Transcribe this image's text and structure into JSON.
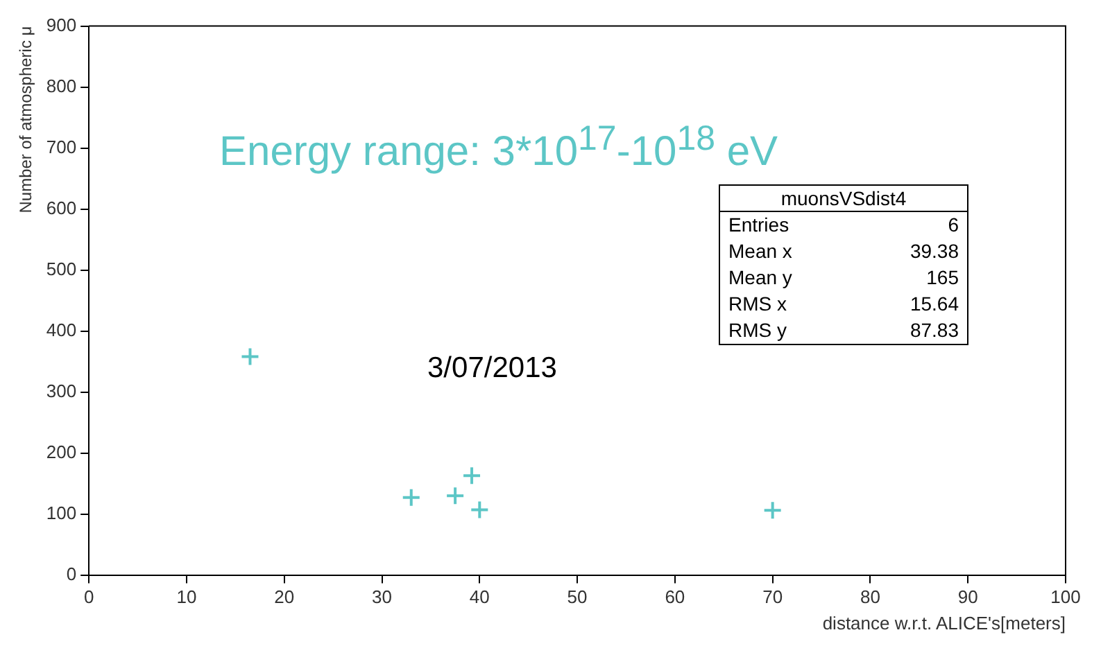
{
  "chart_data": {
    "type": "scatter",
    "xlabel": "distance w.r.t. ALICE's[meters]",
    "ylabel": "Number of atmospheric μ",
    "x": [
      16.5,
      33,
      37.5,
      39.2,
      40,
      70
    ],
    "series": [
      {
        "color": "#5cc6c6",
        "values": [
          358,
          127,
          130,
          163,
          107,
          106
        ]
      }
    ],
    "xlim": [
      0,
      100
    ],
    "xticks": [
      0,
      10,
      20,
      30,
      40,
      50,
      60,
      70,
      80,
      90,
      100
    ],
    "ylim": [
      0,
      900
    ],
    "yticks": [
      0,
      100,
      200,
      300,
      400,
      500,
      600,
      700,
      800,
      900
    ],
    "marker": "cross",
    "grid": false,
    "legend": false,
    "annotations": [
      "Energy range: 3*10$^{17}$-10$^{18}$ eV",
      "3/07/2013",
      "muonsVSdist4",
      "Entries 6",
      "Mean x 39.38",
      "Mean y 165",
      "RMS x 15.64",
      "RMS y 87.83"
    ]
  }
}
